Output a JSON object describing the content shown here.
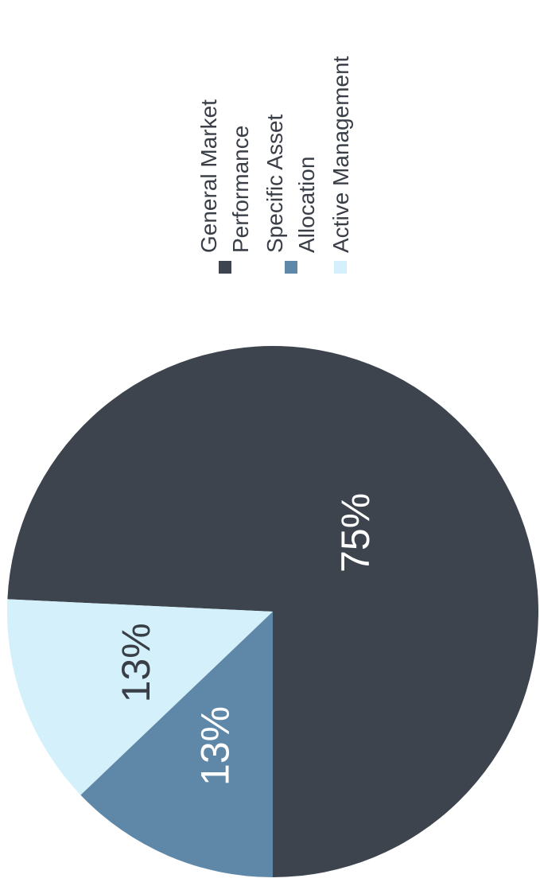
{
  "chart_data": {
    "type": "pie",
    "categories": [
      "General Market Performance",
      "Specific Asset Allocation",
      "Active Management"
    ],
    "values": [
      75,
      13,
      13
    ],
    "data_labels": [
      "75%",
      "13%",
      "13%"
    ],
    "legend": {
      "placement": "right",
      "entries": [
        {
          "lines": [
            "General Market",
            "Performance"
          ],
          "color": "#3d444d"
        },
        {
          "lines": [
            "Specific Asset",
            "Allocation"
          ],
          "color": "#5f88a8"
        },
        {
          "lines": [
            "Active Management"
          ],
          "color": "#d4f0fb"
        }
      ]
    },
    "colors": [
      "#3d444d",
      "#5f88a8",
      "#d4f0fb"
    ],
    "label_colors": [
      "#ffffff",
      "#ffffff",
      "#3a3f47"
    ],
    "orientation": "rotated-90-clockwise"
  }
}
